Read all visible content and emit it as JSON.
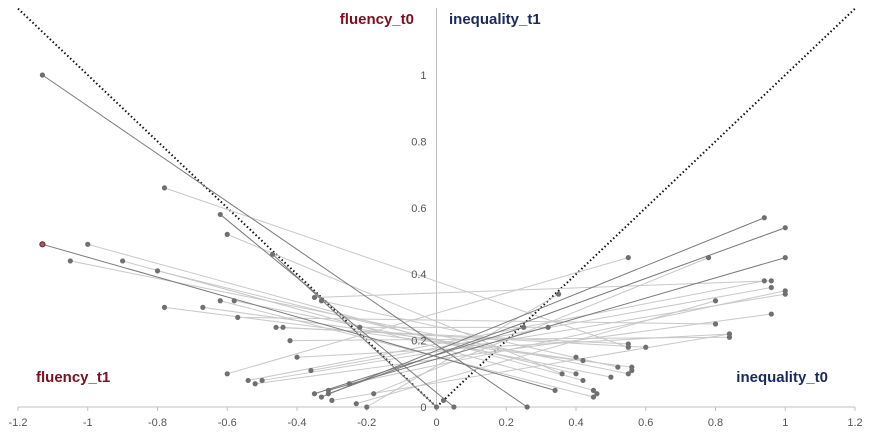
{
  "chart_data": {
    "type": "scatter",
    "title": "",
    "xlabel": "",
    "ylabel": "",
    "xlim": [
      -1.2,
      1.2
    ],
    "ylim": [
      0,
      1.0
    ],
    "x_ticks": [
      "-1.2",
      "-1",
      "-0.8",
      "-0.6",
      "-0.4",
      "-0.2",
      "0",
      "0.2",
      "0.4",
      "0.6",
      "0.8",
      "1",
      "1.2"
    ],
    "x_tick_values": [
      -1.2,
      -1,
      -0.8,
      -0.6,
      -0.4,
      -0.2,
      0,
      0.2,
      0.4,
      0.6,
      0.8,
      1,
      1.2
    ],
    "y_ticks": [
      "0",
      "0.2",
      "0.4",
      "0.6",
      "0.8",
      "1"
    ],
    "y_tick_values": [
      0,
      0.2,
      0.4,
      0.6,
      0.8,
      1
    ],
    "grid": false,
    "quadrant_labels": {
      "top_left": "fluency_t0",
      "top_right": "inequality_t1",
      "bottom_left": "fluency_t1",
      "bottom_right": "inequality_t0"
    },
    "colors": {
      "fluency": "#7a1020",
      "inequality": "#1a2a5c",
      "point": "#707070",
      "highlight_point": "#8b1a1a",
      "line_light": "#c8c8c8",
      "line_dark": "#7a7a7a",
      "axis": "#c0c0c0",
      "diagonal": "#111111"
    },
    "diagonal_lines": [
      {
        "x": [
          -1.2,
          0
        ],
        "y": [
          1.2,
          0
        ]
      },
      {
        "x": [
          0,
          1.2
        ],
        "y": [
          0,
          1.2
        ]
      }
    ],
    "connections": [
      {
        "x1": -1.13,
        "y1": 1.0,
        "x2": 0.26,
        "y2": 0.0,
        "dark": true
      },
      {
        "x1": -1.13,
        "y1": 0.49,
        "x2": 0.34,
        "y2": 0.05,
        "dark": true,
        "highlight": true
      },
      {
        "x1": -1.0,
        "y1": 0.49,
        "x2": 0.42,
        "y2": 0.08
      },
      {
        "x1": -1.05,
        "y1": 0.44,
        "x2": 0.55,
        "y2": 0.1
      },
      {
        "x1": -0.9,
        "y1": 0.44,
        "x2": 0.45,
        "y2": 0.05
      },
      {
        "x1": -0.8,
        "y1": 0.41,
        "x2": 0.4,
        "y2": 0.1
      },
      {
        "x1": -0.78,
        "y1": 0.66,
        "x2": 0.55,
        "y2": 0.18
      },
      {
        "x1": -0.78,
        "y1": 0.3,
        "x2": 0.56,
        "y2": 0.12
      },
      {
        "x1": -0.62,
        "y1": 0.58,
        "x2": 0.05,
        "y2": 0.0,
        "dark": true
      },
      {
        "x1": -0.6,
        "y1": 0.52,
        "x2": 0.36,
        "y2": 0.1
      },
      {
        "x1": -0.47,
        "y1": 0.46,
        "x2": 0.0,
        "y2": 0.0,
        "dark": true
      },
      {
        "x1": -0.62,
        "y1": 0.32,
        "x2": 0.45,
        "y2": 0.03
      },
      {
        "x1": -0.58,
        "y1": 0.32,
        "x2": 0.5,
        "y2": 0.09
      },
      {
        "x1": -0.6,
        "y1": 0.1,
        "x2": 0.55,
        "y2": 0.45
      },
      {
        "x1": -0.57,
        "y1": 0.27,
        "x2": 0.8,
        "y2": 0.25
      },
      {
        "x1": -0.67,
        "y1": 0.3,
        "x2": 0.42,
        "y2": 0.14
      },
      {
        "x1": -0.46,
        "y1": 0.24,
        "x2": 0.55,
        "y2": 0.19
      },
      {
        "x1": -0.42,
        "y1": 0.2,
        "x2": 0.84,
        "y2": 0.21
      },
      {
        "x1": -0.35,
        "y1": 0.33,
        "x2": 0.96,
        "y2": 0.38
      },
      {
        "x1": -0.33,
        "y1": 0.32,
        "x2": 0.52,
        "y2": 0.12
      },
      {
        "x1": -0.4,
        "y1": 0.15,
        "x2": 0.84,
        "y2": 0.22
      },
      {
        "x1": -0.36,
        "y1": 0.11,
        "x2": 0.96,
        "y2": 0.36
      },
      {
        "x1": -0.31,
        "y1": 0.05,
        "x2": 1.0,
        "y2": 0.45,
        "dark": true
      },
      {
        "x1": -0.33,
        "y1": 0.03,
        "x2": 0.94,
        "y2": 0.57,
        "dark": true
      },
      {
        "x1": -0.31,
        "y1": 0.04,
        "x2": 1.0,
        "y2": 0.54,
        "dark": true
      },
      {
        "x1": -0.35,
        "y1": 0.04,
        "x2": 0.25,
        "y2": 0.24,
        "dark": true
      },
      {
        "x1": -0.5,
        "y1": 0.08,
        "x2": 1.0,
        "y2": 0.34
      },
      {
        "x1": -0.52,
        "y1": 0.07,
        "x2": 0.96,
        "y2": 0.28
      },
      {
        "x1": -0.54,
        "y1": 0.08,
        "x2": 0.94,
        "y2": 0.38
      },
      {
        "x1": -0.2,
        "y1": 0.0,
        "x2": 0.35,
        "y2": 0.34
      },
      {
        "x1": -0.23,
        "y1": 0.01,
        "x2": 0.8,
        "y2": 0.32
      },
      {
        "x1": -0.18,
        "y1": 0.04,
        "x2": 0.78,
        "y2": 0.45
      },
      {
        "x1": -0.22,
        "y1": 0.24,
        "x2": 0.32,
        "y2": 0.24
      },
      {
        "x1": -0.44,
        "y1": 0.24,
        "x2": 0.6,
        "y2": 0.18
      },
      {
        "x1": -0.25,
        "y1": 0.07,
        "x2": 1.0,
        "y2": 0.35
      },
      {
        "x1": -0.3,
        "y1": 0.02,
        "x2": 0.84,
        "y2": 0.22
      }
    ],
    "extra_points": [
      {
        "x": 0.02,
        "y": 0.02
      },
      {
        "x": 0.46,
        "y": 0.04
      },
      {
        "x": 0.56,
        "y": 0.11
      },
      {
        "x": 0.4,
        "y": 0.15
      }
    ]
  }
}
